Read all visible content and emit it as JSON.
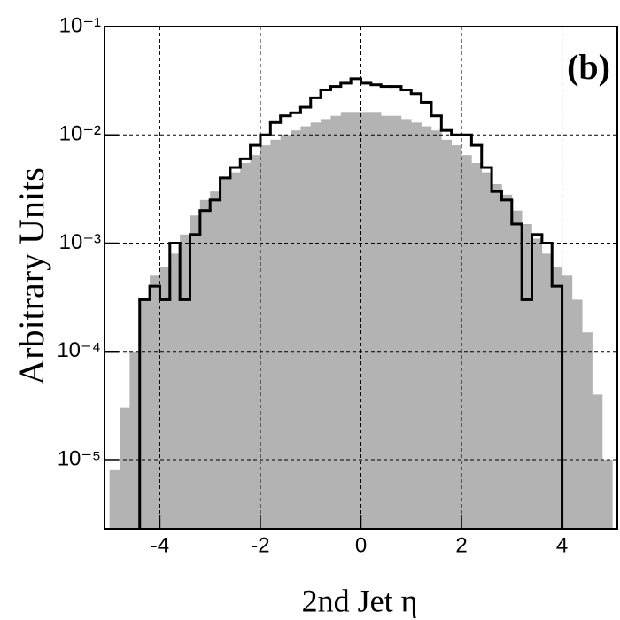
{
  "chart_data": {
    "type": "histogram",
    "x_label": "2nd Jet η",
    "y_label": "Arbitrary Units",
    "annotation": "(b)",
    "log_y": true,
    "grid": true,
    "xlim": [
      -5.1,
      5.1
    ],
    "ylim": [
      2.3e-06,
      0.1
    ],
    "xticks": [
      -4,
      -2,
      0,
      2,
      4
    ],
    "yticks": [
      {
        "value": 1e-05,
        "label": "10⁻⁵"
      },
      {
        "value": 0.0001,
        "label": "10⁻⁴"
      },
      {
        "value": 0.001,
        "label": "10⁻³"
      },
      {
        "value": 0.01,
        "label": "10⁻²"
      },
      {
        "value": 0.1,
        "label": "10⁻¹"
      }
    ],
    "bins": [
      -5.0,
      -4.8,
      -4.6,
      -4.4,
      -4.2,
      -4.0,
      -3.8,
      -3.6,
      -3.4,
      -3.2,
      -3.0,
      -2.8,
      -2.6,
      -2.4,
      -2.2,
      -2.0,
      -1.8,
      -1.6,
      -1.4,
      -1.2,
      -1.0,
      -0.8,
      -0.6,
      -0.4,
      -0.2,
      0.0,
      0.2,
      0.4,
      0.6,
      0.8,
      1.0,
      1.2,
      1.4,
      1.6,
      1.8,
      2.0,
      2.2,
      2.4,
      2.6,
      2.8,
      3.0,
      3.2,
      3.4,
      3.6,
      3.8,
      4.0,
      4.2,
      4.4,
      4.6,
      4.8,
      5.0
    ],
    "series": [
      {
        "color": "#b3b3b3",
        "style": "filled",
        "values": [
          8e-06,
          3e-05,
          0.0001,
          0.0003,
          0.0005,
          0.0006,
          0.0008,
          0.0012,
          0.0018,
          0.0025,
          0.003,
          0.004,
          0.0045,
          0.0055,
          0.0065,
          0.008,
          0.009,
          0.01,
          0.011,
          0.012,
          0.013,
          0.014,
          0.015,
          0.016,
          0.016,
          0.016,
          0.016,
          0.015,
          0.015,
          0.014,
          0.013,
          0.012,
          0.011,
          0.009,
          0.008,
          0.0065,
          0.0055,
          0.0045,
          0.0035,
          0.0028,
          0.002,
          0.0015,
          0.0011,
          0.0008,
          0.0006,
          0.0005,
          0.0003,
          0.00015,
          4e-05,
          1e-05
        ]
      },
      {
        "color": "#000000",
        "style": "step",
        "values": [
          null,
          null,
          null,
          0.0003,
          0.0004,
          0.0003,
          0.001,
          0.0003,
          0.0012,
          0.002,
          0.0025,
          0.004,
          0.005,
          0.006,
          0.008,
          0.01,
          0.013,
          0.015,
          0.016,
          0.018,
          0.022,
          0.026,
          0.028,
          0.03,
          0.033,
          0.03,
          0.029,
          0.028,
          0.028,
          0.026,
          0.024,
          0.02,
          0.015,
          0.011,
          0.01,
          0.01,
          0.008,
          0.005,
          0.003,
          0.0025,
          0.0015,
          0.0003,
          0.0012,
          0.001,
          0.0004,
          null,
          null,
          null,
          null,
          null
        ]
      }
    ]
  }
}
